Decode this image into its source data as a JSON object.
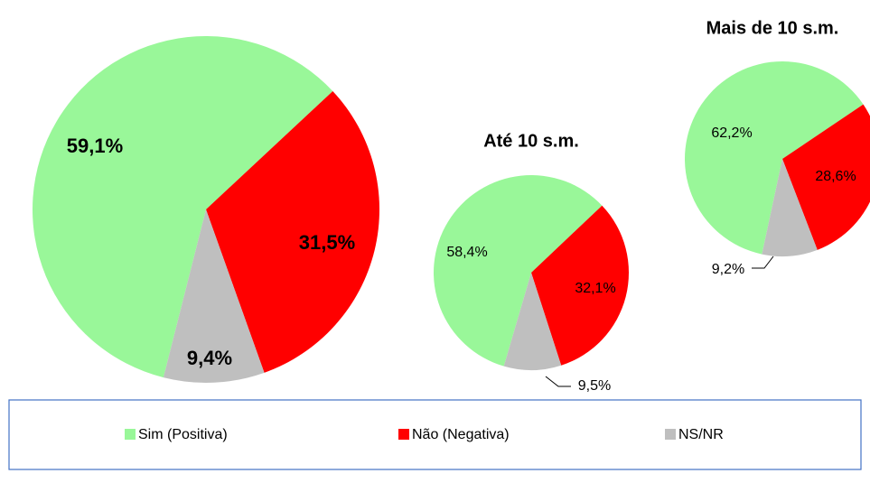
{
  "chart_data": [
    {
      "type": "pie",
      "values": [
        59.1,
        31.5,
        9.4
      ],
      "value_labels": [
        "59,1%",
        "31,5%",
        "9,4%"
      ]
    },
    {
      "type": "pie",
      "title": "Até 10 s.m.",
      "values": [
        58.4,
        32.1,
        9.5
      ],
      "value_labels": [
        "58,4%",
        "32,1%",
        "9,5%"
      ]
    },
    {
      "type": "pie",
      "title": "Mais de 10 s.m.",
      "values": [
        62.2,
        28.6,
        9.2
      ],
      "value_labels": [
        "62,2%",
        "28,6%",
        "9,2%"
      ]
    }
  ],
  "legend": {
    "labels": [
      "Sim (Positiva)",
      "Não (Negativa)",
      "NS/NR"
    ],
    "colors": [
      "#99f799",
      "#ff0000",
      "#bfbfbf"
    ]
  }
}
